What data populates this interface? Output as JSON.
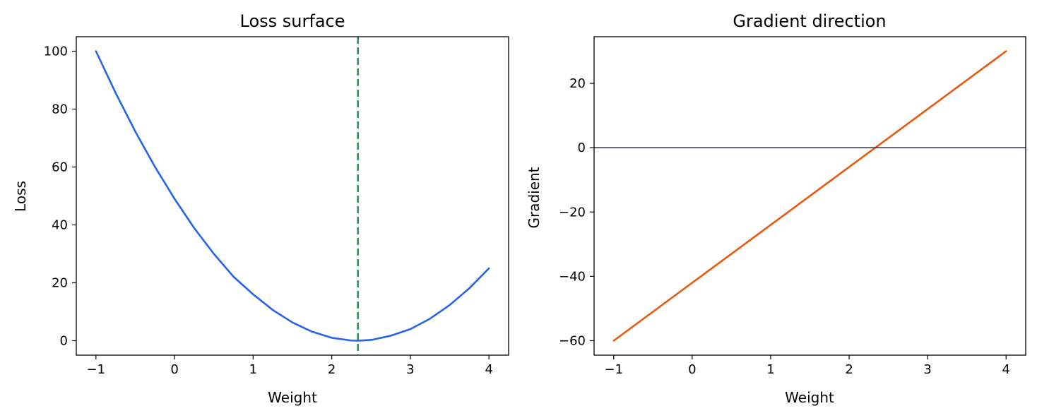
{
  "chart_data": [
    {
      "type": "line",
      "title": "Loss surface",
      "xlabel": "Weight",
      "ylabel": "Loss",
      "xlim": [
        -1.25,
        4.25
      ],
      "ylim": [
        -5,
        105
      ],
      "xticks": [
        -1,
        0,
        1,
        2,
        3,
        4
      ],
      "yticks": [
        0,
        20,
        40,
        60,
        80,
        100
      ],
      "xtick_labels": [
        "−1",
        "0",
        "1",
        "2",
        "3",
        "4"
      ],
      "ytick_labels": [
        "0",
        "20",
        "40",
        "60",
        "80",
        "100"
      ],
      "grid": false,
      "series": [
        {
          "kind": "curve",
          "color": "#2563eb",
          "x": [
            -1.0,
            -0.75,
            -0.5,
            -0.25,
            0.0,
            0.25,
            0.5,
            0.75,
            1.0,
            1.25,
            1.5,
            1.75,
            2.0,
            2.25,
            2.333,
            2.5,
            2.75,
            3.0,
            3.25,
            3.5,
            3.75,
            4.0
          ],
          "y": [
            100.0,
            85.6,
            72.3,
            60.1,
            49.0,
            38.9,
            30.0,
            22.1,
            16.0,
            10.6,
            6.3,
            3.1,
            1.0,
            0.06,
            0.0,
            0.25,
            1.7,
            4.0,
            7.6,
            12.3,
            18.1,
            25.0
          ]
        },
        {
          "kind": "vline",
          "color": "#16a34a",
          "style": "dashed",
          "x": 2.333
        }
      ]
    },
    {
      "type": "line",
      "title": "Gradient direction",
      "xlabel": "Weight",
      "ylabel": "Gradient",
      "xlim": [
        -1.25,
        4.25
      ],
      "ylim": [
        -64.5,
        34.5
      ],
      "xticks": [
        -1,
        0,
        1,
        2,
        3,
        4
      ],
      "yticks": [
        -60,
        -40,
        -20,
        0,
        20
      ],
      "xtick_labels": [
        "−1",
        "0",
        "1",
        "2",
        "3",
        "4"
      ],
      "ytick_labels": [
        "−60",
        "−40",
        "−20",
        "0",
        "20"
      ],
      "grid": false,
      "series": [
        {
          "kind": "curve",
          "color": "#ea580c",
          "x": [
            -1.0,
            4.0
          ],
          "y": [
            -60.0,
            30.0
          ]
        },
        {
          "kind": "hline",
          "color": "#334155",
          "y": 0
        }
      ]
    }
  ]
}
